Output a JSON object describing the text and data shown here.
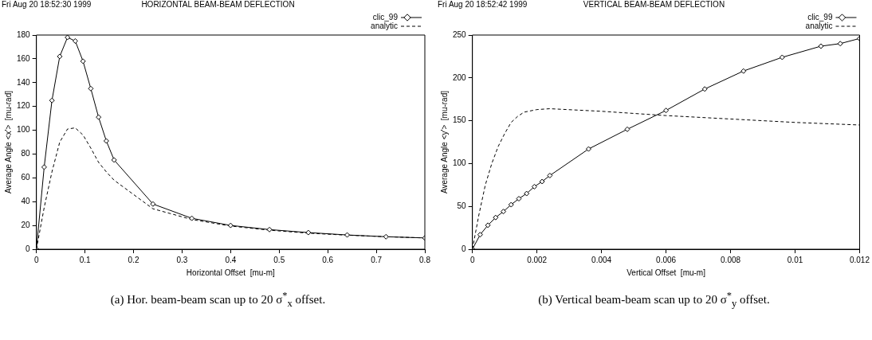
{
  "chart_data": [
    {
      "type": "line",
      "title": "HORIZONTAL BEAM-BEAM DEFLECTION",
      "xlabel": "Horizontal Offset  [mu-m]",
      "ylabel": "Average Angle <x'>  [mu-rad]",
      "annotations": [
        "Fri Aug 20 18:52:30 1999",
        "(a) Hor. beam-beam scan up to 20 σ$^{*}$$_{x}$ offset."
      ],
      "series": [
        {
          "name": "clic_99",
          "color": "#000000",
          "marker": "diamond",
          "line_style": "solid",
          "x": [
            0,
            0.016,
            0.032,
            0.048,
            0.064,
            0.08,
            0.096,
            0.112,
            0.128,
            0.144,
            0.16,
            0.24,
            0.32,
            0.4,
            0.48,
            0.56,
            0.64,
            0.72,
            0.8
          ],
          "values": [
            0,
            69,
            125,
            162,
            178,
            175,
            158,
            135,
            111,
            91,
            75,
            38,
            26,
            20,
            16.5,
            14,
            12,
            10.5,
            9.5
          ]
        },
        {
          "name": "analytic",
          "color": "#000000",
          "marker": "none",
          "line_style": "dashed",
          "x": [
            0,
            0.016,
            0.032,
            0.048,
            0.064,
            0.08,
            0.096,
            0.112,
            0.128,
            0.144,
            0.16,
            0.24,
            0.32,
            0.4,
            0.48,
            0.56,
            0.64,
            0.72,
            0.8
          ],
          "values": [
            0,
            35,
            65,
            90,
            101,
            102,
            96,
            85,
            73,
            65,
            58,
            34,
            25,
            19.5,
            16,
            13.5,
            11.8,
            10.5,
            9.5
          ]
        }
      ],
      "xlim": [
        0,
        0.8
      ],
      "xticks": [
        0,
        0.1,
        0.2,
        0.3,
        0.4,
        0.5,
        0.6,
        0.7,
        0.8
      ],
      "ylim": [
        0,
        180
      ],
      "yticks": [
        0,
        20,
        40,
        60,
        80,
        100,
        120,
        140,
        160,
        180
      ],
      "grid": false,
      "legend": "top right"
    },
    {
      "type": "line",
      "title": "VERTICAL BEAM-BEAM DEFLECTION",
      "xlabel": "Vertical Offset  [mu-m]",
      "ylabel": "Average Angle <y'>  [mu-rad]",
      "annotations": [
        "Fri Aug 20 18:52:42 1999",
        "(b) Vertical beam-beam scan up to 20 σ$^{*}$$_{y}$ offset."
      ],
      "series": [
        {
          "name": "clic_99",
          "color": "#000000",
          "marker": "diamond",
          "line_style": "solid",
          "x": [
            0,
            0.00024,
            0.00048,
            0.00072,
            0.00096,
            0.0012,
            0.00144,
            0.00168,
            0.00192,
            0.00216,
            0.0024,
            0.0036,
            0.0048,
            0.006,
            0.0072,
            0.0084,
            0.0096,
            0.0108,
            0.0114,
            0.012
          ],
          "values": [
            0,
            17,
            28,
            37,
            44,
            52,
            59,
            65,
            73,
            79,
            86,
            117,
            140,
            162,
            187,
            208,
            224,
            237,
            240,
            246
          ]
        },
        {
          "name": "analytic",
          "color": "#000000",
          "marker": "none",
          "line_style": "dashed",
          "x": [
            0,
            0.0002,
            0.0004,
            0.0006,
            0.0008,
            0.001,
            0.0012,
            0.0014,
            0.0016,
            0.002,
            0.0024,
            0.004,
            0.006,
            0.008,
            0.01,
            0.012
          ],
          "values": [
            0,
            40,
            75,
            100,
            120,
            135,
            148,
            155,
            160,
            163,
            164,
            161,
            156,
            152,
            148,
            145
          ]
        }
      ],
      "xlim": [
        0,
        0.012
      ],
      "xticks": [
        0,
        0.002,
        0.004,
        0.006,
        0.008,
        0.01,
        0.012
      ],
      "ylim": [
        0,
        250
      ],
      "yticks": [
        0,
        50,
        100,
        150,
        200,
        250
      ],
      "grid": false,
      "legend": "top right"
    }
  ]
}
